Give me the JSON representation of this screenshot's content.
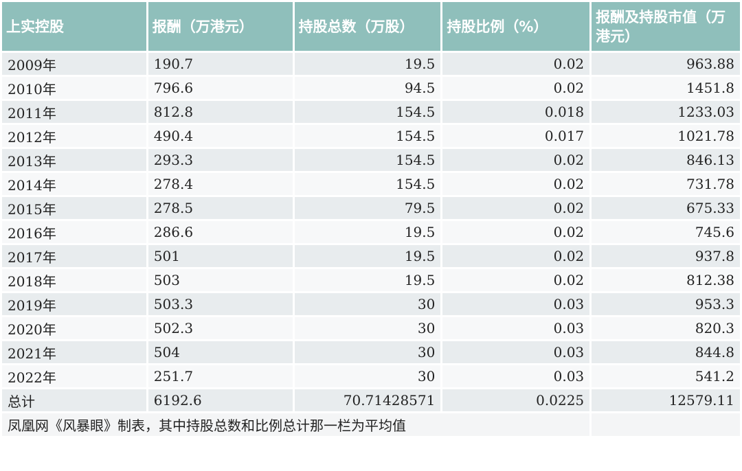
{
  "table": {
    "headers": [
      "上实控股",
      "报酬（万港元）",
      "持股总数（万股）",
      "持股比例（%）",
      "报酬及持股市值（万港元）"
    ],
    "rows": [
      [
        "2009年",
        "190.7",
        "19.5",
        "0.02",
        "963.88"
      ],
      [
        "2010年",
        "796.6",
        "94.5",
        "0.02",
        "1451.8"
      ],
      [
        "2011年",
        "812.8",
        "154.5",
        "0.018",
        "1233.03"
      ],
      [
        "2012年",
        "490.4",
        "154.5",
        "0.017",
        "1021.78"
      ],
      [
        "2013年",
        "293.3",
        "154.5",
        "0.02",
        "846.13"
      ],
      [
        "2014年",
        "278.4",
        "154.5",
        "0.02",
        "731.78"
      ],
      [
        "2015年",
        "278.5",
        "79.5",
        "0.02",
        "675.33"
      ],
      [
        "2016年",
        "286.6",
        "19.5",
        "0.02",
        "745.6"
      ],
      [
        "2017年",
        "501",
        "19.5",
        "0.02",
        "937.8"
      ],
      [
        "2018年",
        "503",
        "19.5",
        "0.02",
        "812.38"
      ],
      [
        "2019年",
        "503.3",
        "30",
        "0.03",
        "953.3"
      ],
      [
        "2020年",
        "502.3",
        "30",
        "0.03",
        "820.3"
      ],
      [
        "2021年",
        "504",
        "30",
        "0.03",
        "844.8"
      ],
      [
        "2022年",
        "251.7",
        "30",
        "0.03",
        "541.2"
      ],
      [
        "总计",
        "6192.6",
        "70.71428571",
        "0.0225",
        "12579.11"
      ]
    ],
    "footnote": "凤凰网《风暴眼》制表，其中持股总数和比例总计那一栏为平均值"
  },
  "colors": {
    "header_bg": "#8fbfbb",
    "header_text": "#ffffff",
    "row_odd": "#e8ecee",
    "row_even": "#f7f8f9"
  }
}
